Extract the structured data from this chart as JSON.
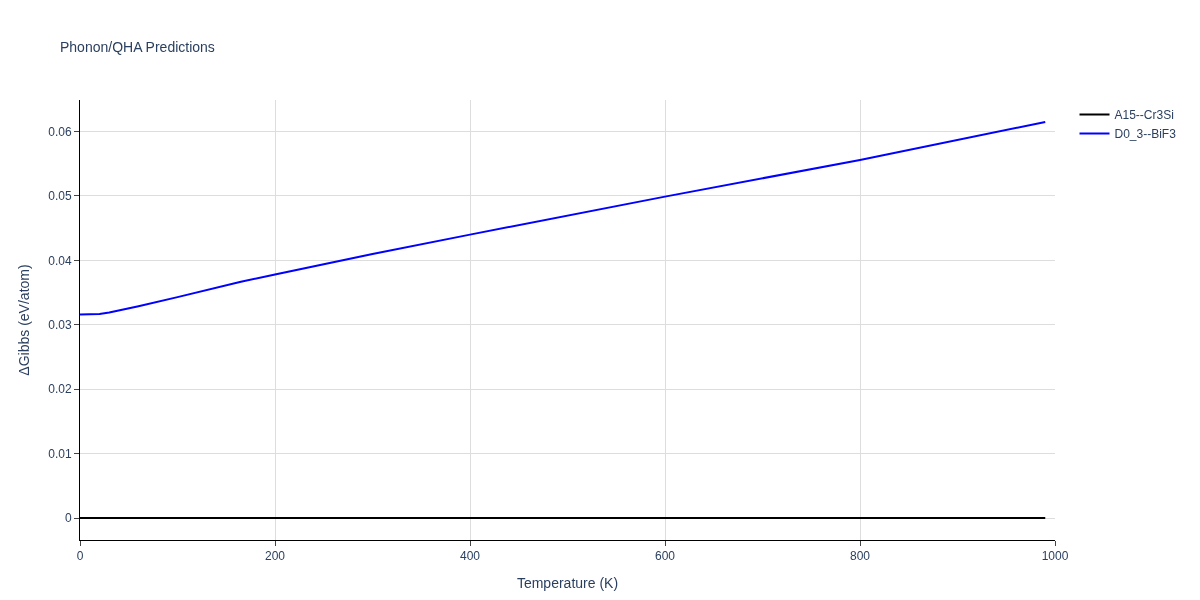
{
  "chart_data": {
    "type": "line",
    "title": "Phonon/QHA Predictions",
    "xlabel": "Temperature (K)",
    "ylabel": "ΔGibbs (eV/atom)",
    "xlim": [
      0,
      1000
    ],
    "xticks": [
      0,
      200,
      400,
      600,
      800,
      1000
    ],
    "ylim": [
      -0.0034,
      0.0649
    ],
    "yticks": [
      0,
      0.01,
      0.02,
      0.03,
      0.04,
      0.05,
      0.06
    ],
    "grid": true,
    "legend": "top right",
    "marker": "none",
    "line_style": "solid",
    "series": [
      {
        "name": "A15--Cr3Si",
        "color": "#000000",
        "x": [
          0,
          990
        ],
        "values": [
          0,
          0
        ]
      },
      {
        "name": "D0_3--BiF3",
        "color": "#0000ff",
        "x": [
          0,
          20,
          30,
          60,
          100,
          165,
          200,
          300,
          400,
          600,
          800,
          990
        ],
        "values": [
          0.0316,
          0.0317,
          0.0319,
          0.0329,
          0.0343,
          0.0367,
          0.0378,
          0.041,
          0.044,
          0.0499,
          0.0556,
          0.0615
        ]
      }
    ]
  }
}
